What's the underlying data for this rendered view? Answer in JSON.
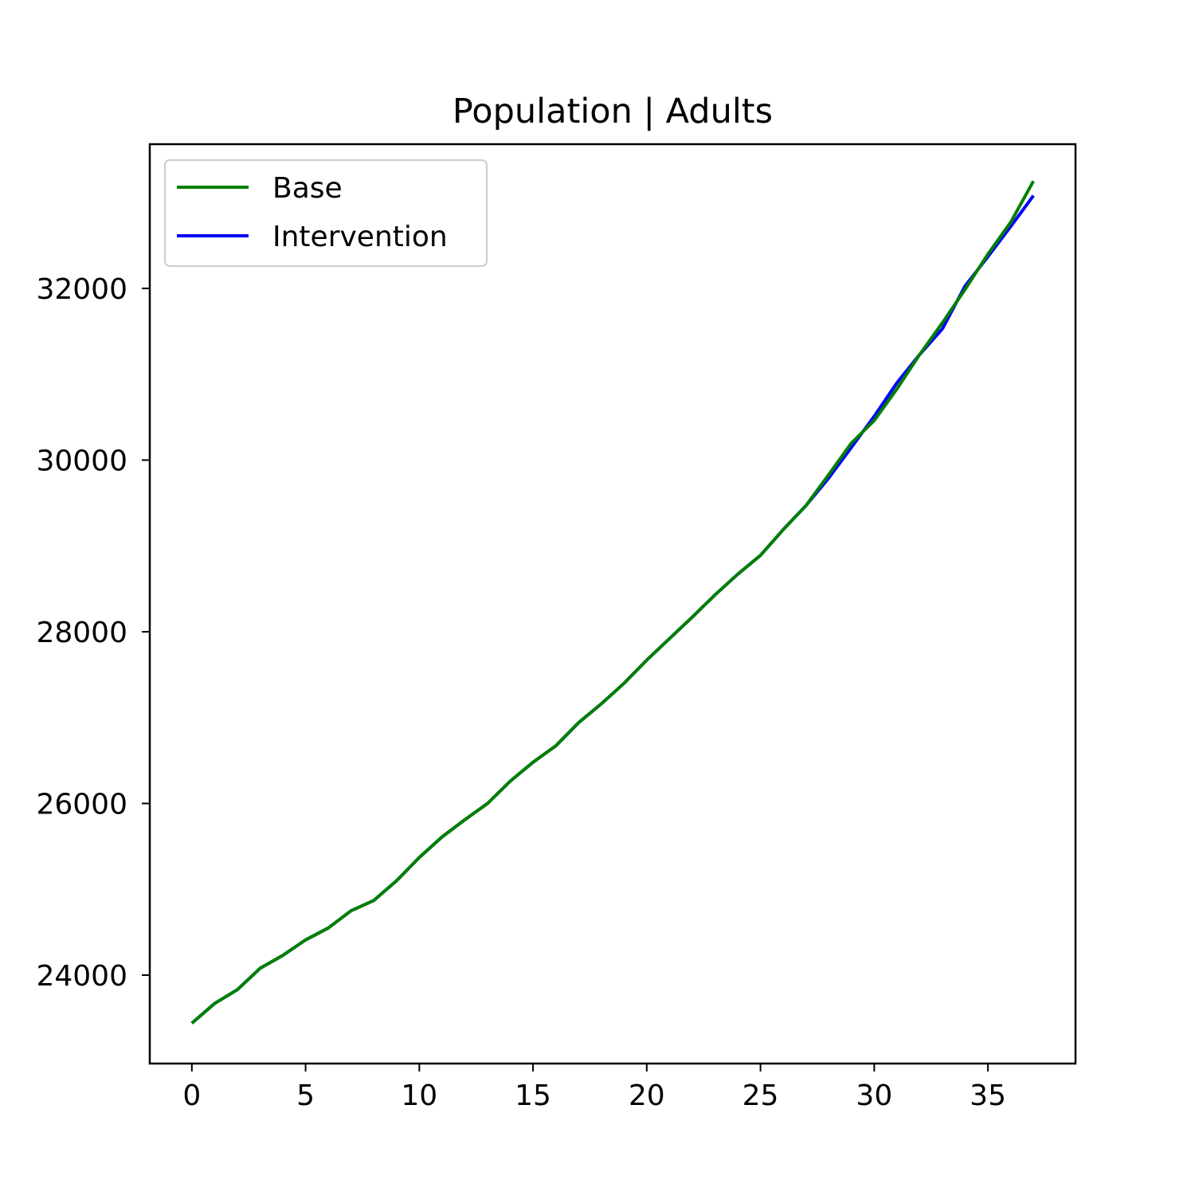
{
  "chart_data": {
    "type": "line",
    "title": "Population | Adults",
    "xlabel": "",
    "ylabel": "",
    "xlim": [
      -1.85,
      38.85
    ],
    "ylim": [
      22970,
      33680
    ],
    "xticks": [
      0,
      5,
      10,
      15,
      20,
      25,
      30,
      35
    ],
    "yticks": [
      24000,
      26000,
      28000,
      30000,
      32000
    ],
    "grid": false,
    "legend_position": "upper-left",
    "x": [
      0,
      1,
      2,
      3,
      4,
      5,
      6,
      7,
      8,
      9,
      10,
      11,
      12,
      13,
      14,
      15,
      16,
      17,
      18,
      19,
      20,
      21,
      22,
      23,
      24,
      25,
      26,
      27,
      28,
      29,
      30,
      31,
      32,
      33,
      34,
      35,
      36,
      37
    ],
    "series": [
      {
        "name": "Base",
        "color": "#008000",
        "values": [
          23440,
          23670,
          23830,
          24080,
          24230,
          24410,
          24550,
          24750,
          24870,
          25100,
          25370,
          25610,
          25810,
          26000,
          26260,
          26480,
          26670,
          26940,
          27160,
          27400,
          27670,
          27920,
          28170,
          28430,
          28670,
          28890,
          29190,
          29470,
          29830,
          30200,
          30460,
          30830,
          31230,
          31600,
          31990,
          32400,
          32770,
          33250
        ]
      },
      {
        "name": "Intervention",
        "color": "#0000ff",
        "values": [
          23440,
          23670,
          23830,
          24080,
          24230,
          24410,
          24550,
          24750,
          24870,
          25100,
          25370,
          25610,
          25810,
          26000,
          26260,
          26480,
          26670,
          26940,
          27160,
          27400,
          27670,
          27920,
          28170,
          28430,
          28670,
          28890,
          29190,
          29470,
          29790,
          30150,
          30510,
          30900,
          31230,
          31530,
          32030,
          32370,
          32720,
          33080
        ]
      }
    ]
  }
}
